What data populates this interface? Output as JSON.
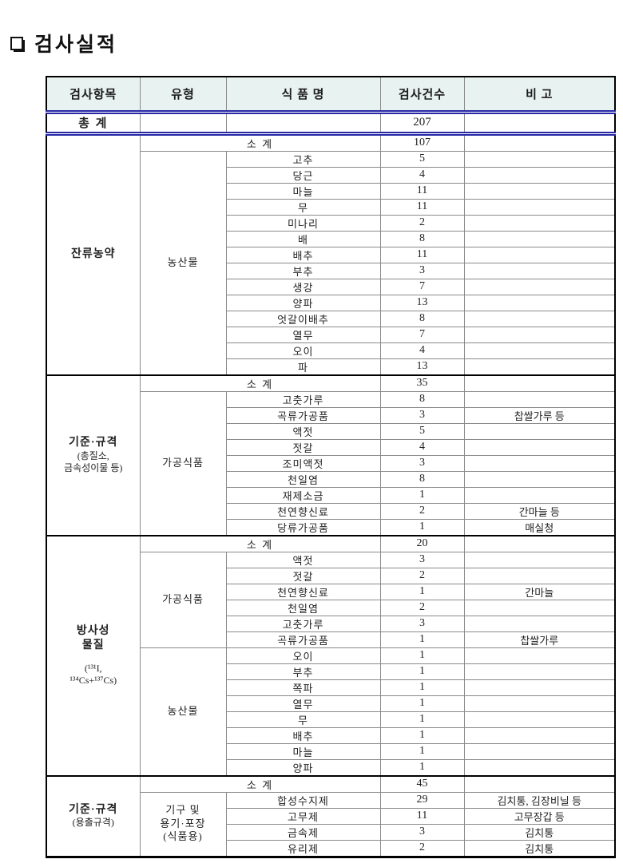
{
  "page": {
    "title": "검사실적"
  },
  "colors": {
    "header_bg": "#e8f2f0",
    "total_border_blue": "#2828a6",
    "grid_gray": "#8a8a8a",
    "outer_black": "#000000"
  },
  "table": {
    "headers": [
      "검사항목",
      "유형",
      "식 품 명",
      "검사건수",
      "비 고"
    ],
    "subtotal_label": "소 계",
    "total": {
      "label": "총 계",
      "count": "207",
      "note": ""
    },
    "sections": [
      {
        "label_lines": [
          "잔류농약"
        ],
        "label_sub_lines": [],
        "subtotal": "107",
        "subtotal_note": "",
        "groups": [
          {
            "type_lines": [
              "농산물"
            ],
            "rows": [
              {
                "name": "고추",
                "count": "5",
                "note": ""
              },
              {
                "name": "당근",
                "count": "4",
                "note": ""
              },
              {
                "name": "마늘",
                "count": "11",
                "note": ""
              },
              {
                "name": "무",
                "count": "11",
                "note": ""
              },
              {
                "name": "미나리",
                "count": "2",
                "note": ""
              },
              {
                "name": "배",
                "count": "8",
                "note": ""
              },
              {
                "name": "배추",
                "count": "11",
                "note": ""
              },
              {
                "name": "부추",
                "count": "3",
                "note": ""
              },
              {
                "name": "생강",
                "count": "7",
                "note": ""
              },
              {
                "name": "양파",
                "count": "13",
                "note": ""
              },
              {
                "name": "엇갈이배추",
                "count": "8",
                "note": ""
              },
              {
                "name": "열무",
                "count": "7",
                "note": ""
              },
              {
                "name": "오이",
                "count": "4",
                "note": ""
              },
              {
                "name": "파",
                "count": "13",
                "note": ""
              }
            ]
          }
        ]
      },
      {
        "label_lines": [
          "기준·규격"
        ],
        "label_sub_lines": [
          "(총질소,",
          "금속성이물 등)"
        ],
        "subtotal": "35",
        "subtotal_note": "",
        "groups": [
          {
            "type_lines": [
              "가공식품"
            ],
            "rows": [
              {
                "name": "고춧가루",
                "count": "8",
                "note": ""
              },
              {
                "name": "곡류가공품",
                "count": "3",
                "note": "찹쌀가루 등"
              },
              {
                "name": "액젓",
                "count": "5",
                "note": ""
              },
              {
                "name": "젓갈",
                "count": "4",
                "note": ""
              },
              {
                "name": "조미액젓",
                "count": "3",
                "note": ""
              },
              {
                "name": "천일염",
                "count": "8",
                "note": ""
              },
              {
                "name": "재제소금",
                "count": "1",
                "note": ""
              },
              {
                "name": "천연향신료",
                "count": "2",
                "note": "간마늘 등"
              },
              {
                "name": "당류가공품",
                "count": "1",
                "note": "매실청"
              }
            ]
          }
        ]
      },
      {
        "label_lines": [
          "방사성",
          "물질"
        ],
        "label_sub_lines": [
          "",
          "(¹³¹I,",
          "¹³⁴Cs+¹³⁷Cs)"
        ],
        "subtotal": "20",
        "subtotal_note": "",
        "groups": [
          {
            "type_lines": [
              "가공식품"
            ],
            "rows": [
              {
                "name": "액젓",
                "count": "3",
                "note": ""
              },
              {
                "name": "젓갈",
                "count": "2",
                "note": ""
              },
              {
                "name": "천연향신료",
                "count": "1",
                "note": "간마늘"
              },
              {
                "name": "천일염",
                "count": "2",
                "note": ""
              },
              {
                "name": "고춧가루",
                "count": "3",
                "note": ""
              },
              {
                "name": "곡류가공품",
                "count": "1",
                "note": "찹쌀가루"
              }
            ]
          },
          {
            "type_lines": [
              "농산물"
            ],
            "rows": [
              {
                "name": "오이",
                "count": "1",
                "note": ""
              },
              {
                "name": "부추",
                "count": "1",
                "note": ""
              },
              {
                "name": "쪽파",
                "count": "1",
                "note": ""
              },
              {
                "name": "열무",
                "count": "1",
                "note": ""
              },
              {
                "name": "무",
                "count": "1",
                "note": ""
              },
              {
                "name": "배추",
                "count": "1",
                "note": ""
              },
              {
                "name": "마늘",
                "count": "1",
                "note": ""
              },
              {
                "name": "양파",
                "count": "1",
                "note": ""
              }
            ]
          }
        ]
      },
      {
        "label_lines": [
          "기준·규격"
        ],
        "label_sub_lines": [
          "(용출규격)"
        ],
        "subtotal": "45",
        "subtotal_note": "",
        "groups": [
          {
            "type_lines": [
              "기구 및",
              "용기·포장",
              "(식품용)"
            ],
            "rows": [
              {
                "name": "합성수지제",
                "count": "29",
                "note": "김치통, 김장비닐 등"
              },
              {
                "name": "고무제",
                "count": "11",
                "note": "고무장갑 등"
              },
              {
                "name": "금속제",
                "count": "3",
                "note": "김치통"
              },
              {
                "name": "유리제",
                "count": "2",
                "note": "김치통"
              }
            ]
          }
        ]
      }
    ]
  }
}
